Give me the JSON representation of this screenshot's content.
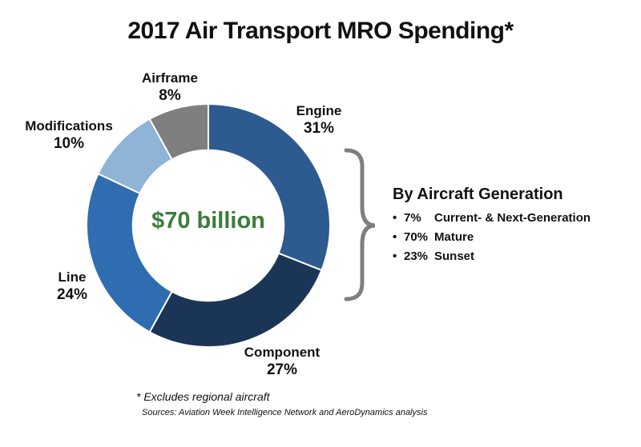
{
  "chart_data": {
    "type": "pie",
    "title": "2017 Air Transport MRO Spending*",
    "center_label": "$70 billion",
    "slices": [
      {
        "label": "Engine",
        "value": 31,
        "value_label": "31%",
        "color": "#2e5b8f"
      },
      {
        "label": "Component",
        "value": 27,
        "value_label": "27%",
        "color": "#1b3557"
      },
      {
        "label": "Line",
        "value": 24,
        "value_label": "24%",
        "color": "#2f6db0"
      },
      {
        "label": "Modifications",
        "value": 10,
        "value_label": "10%",
        "color": "#8fb4d8"
      },
      {
        "label": "Airframe",
        "value": 8,
        "value_label": "8%",
        "color": "#7f7f7f"
      }
    ],
    "inner_radius_ratio": 0.62
  },
  "generation": {
    "title": "By Aircraft Generation",
    "items": [
      {
        "pct": "7%",
        "label": "Current- & Next-Generation"
      },
      {
        "pct": "70%",
        "label": "Mature"
      },
      {
        "pct": "23%",
        "label": "Sunset"
      }
    ]
  },
  "footnote": "* Excludes regional aircraft",
  "sources": "Sources: Aviation Week Intelligence Network and AeroDynamics analysis",
  "colors": {
    "center_text": "#3a7d3a",
    "bracket": "#7f7f7f"
  }
}
